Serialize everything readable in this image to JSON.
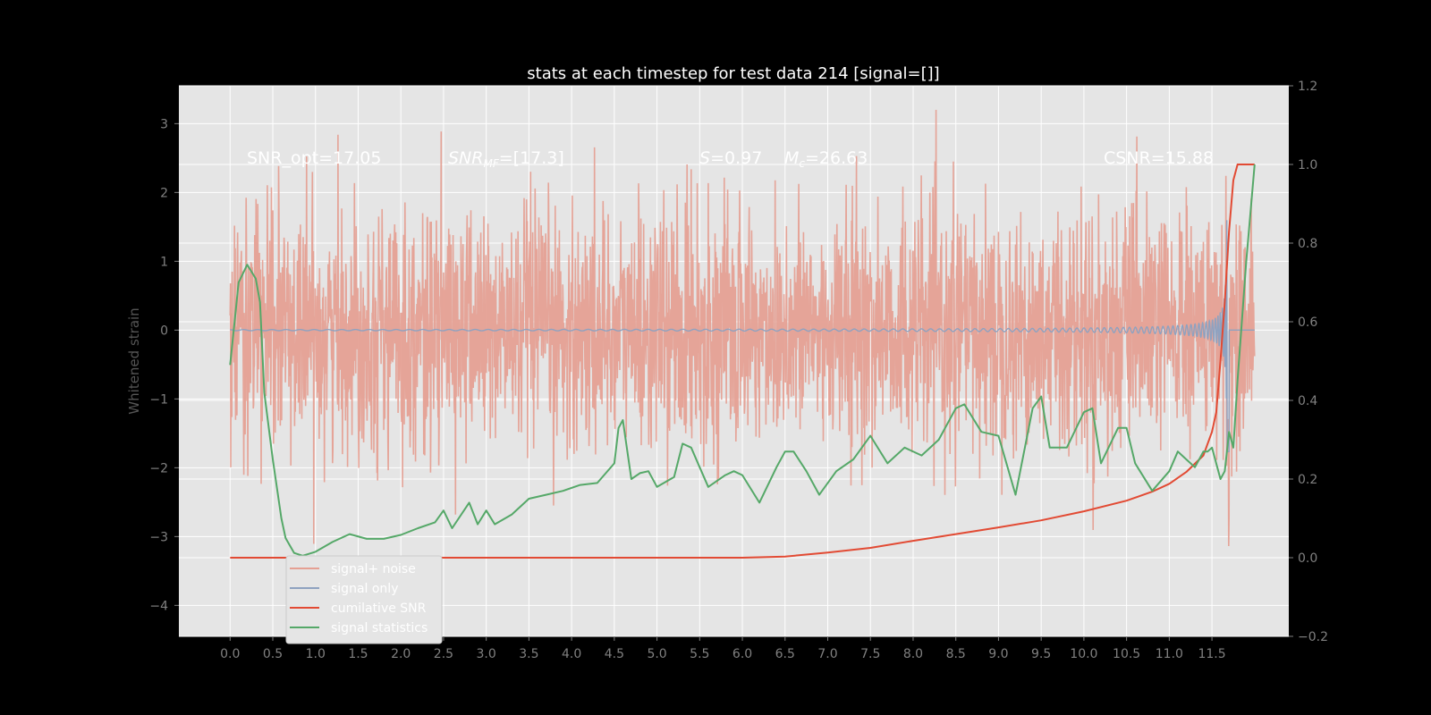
{
  "chart_data": {
    "type": "line",
    "title": "stats at each timestep for test data 214 [signal=[]]",
    "ylabel": "Whitened strain",
    "xlim": [
      -0.6,
      12.4
    ],
    "ylim": [
      -4.45,
      3.55
    ],
    "ylim_right": [
      -0.2,
      1.2
    ],
    "x_ticks": [
      0.0,
      0.5,
      1.0,
      1.5,
      2.0,
      2.5,
      3.0,
      3.5,
      4.0,
      4.5,
      5.0,
      5.5,
      6.0,
      6.5,
      7.0,
      7.5,
      8.0,
      8.5,
      9.0,
      9.5,
      10.0,
      10.5,
      11.0,
      11.5
    ],
    "x_tick_labels": [
      "0.0",
      "0.5",
      "1.0",
      "1.5",
      "2.0",
      "2.5",
      "3.0",
      "3.5",
      "4.0",
      "4.5",
      "5.0",
      "5.5",
      "6.0",
      "6.5",
      "7.0",
      "7.5",
      "8.0",
      "8.5",
      "9.0",
      "9.5",
      "10.0",
      "10.5",
      "11.0",
      "11.5"
    ],
    "y_ticks": [
      3,
      2,
      1,
      0,
      -1,
      -2,
      -3,
      -4
    ],
    "y_tick_labels": [
      "3",
      "2",
      "1",
      "0",
      "−1",
      "−2",
      "−3",
      "−4"
    ],
    "y_right_ticks": [
      1.2,
      1.0,
      0.8,
      0.6,
      0.4,
      0.2,
      0.0,
      -0.2
    ],
    "y_right_tick_labels": [
      "1.2",
      "1.0",
      "0.8",
      "0.6",
      "0.4",
      "0.2",
      "0.0",
      "−0.2"
    ],
    "grid": true,
    "legend_position": "lower-left",
    "annotations": {
      "snr_opt": "SNR_opt=17.05",
      "snr_mf_base": "SNR",
      "snr_mf_sub": "MF",
      "snr_mf_value": "=[17.3]",
      "s": "S",
      "s_value": "=0.97",
      "mc_base": "M",
      "mc_sub": "c",
      "mc_value": "=26.63",
      "csnr": "CSNR=15.88"
    },
    "series": [
      {
        "name": "signal+ noise",
        "color": "#e5a093",
        "axis": "left",
        "kind": "noise",
        "x_range": [
          0.0,
          12.0
        ],
        "amplitude_range": [
          -4.1,
          3.2
        ]
      },
      {
        "name": "signal only",
        "color": "#8fa2c0",
        "axis": "left",
        "kind": "chirp",
        "x_range": [
          0.0,
          12.0
        ],
        "merger_time": 11.68,
        "peak_amplitude": 2.8
      },
      {
        "name": "cumilative SNR",
        "color": "#e24a33",
        "axis": "right",
        "x": [
          0.0,
          6.0,
          6.5,
          7.0,
          7.5,
          8.0,
          8.5,
          9.0,
          9.5,
          10.0,
          10.5,
          10.8,
          11.0,
          11.2,
          11.4,
          11.5,
          11.55,
          11.6,
          11.65,
          11.7,
          11.75,
          11.8,
          12.0
        ],
        "y": [
          0.0,
          0.0,
          0.003,
          0.013,
          0.025,
          0.043,
          0.06,
          0.077,
          0.095,
          0.118,
          0.145,
          0.168,
          0.188,
          0.218,
          0.26,
          0.32,
          0.37,
          0.5,
          0.65,
          0.83,
          0.96,
          1.0,
          1.0
        ]
      },
      {
        "name": "signal statistics",
        "color": "#55a868",
        "axis": "right",
        "x": [
          0.0,
          0.1,
          0.2,
          0.3,
          0.35,
          0.4,
          0.5,
          0.6,
          0.65,
          0.75,
          0.85,
          1.0,
          1.2,
          1.4,
          1.6,
          1.8,
          2.0,
          2.2,
          2.4,
          2.5,
          2.6,
          2.8,
          2.9,
          3.0,
          3.1,
          3.3,
          3.5,
          3.7,
          3.9,
          4.1,
          4.3,
          4.5,
          4.55,
          4.6,
          4.7,
          4.8,
          4.9,
          5.0,
          5.2,
          5.3,
          5.4,
          5.5,
          5.6,
          5.8,
          5.9,
          6.0,
          6.2,
          6.4,
          6.5,
          6.6,
          6.75,
          6.9,
          7.1,
          7.3,
          7.5,
          7.7,
          7.9,
          8.1,
          8.3,
          8.5,
          8.6,
          8.8,
          9.0,
          9.2,
          9.4,
          9.5,
          9.6,
          9.8,
          10.0,
          10.1,
          10.2,
          10.4,
          10.5,
          10.6,
          10.8,
          11.0,
          11.1,
          11.2,
          11.3,
          11.35,
          11.4,
          11.45,
          11.5,
          11.6,
          11.65,
          11.7,
          11.75,
          11.8,
          11.9,
          12.0
        ],
        "y": [
          0.49,
          0.7,
          0.745,
          0.71,
          0.65,
          0.42,
          0.25,
          0.1,
          0.05,
          0.012,
          0.005,
          0.015,
          0.04,
          0.06,
          0.048,
          0.048,
          0.058,
          0.075,
          0.09,
          0.12,
          0.075,
          0.14,
          0.085,
          0.12,
          0.085,
          0.11,
          0.15,
          0.16,
          0.17,
          0.185,
          0.19,
          0.24,
          0.33,
          0.35,
          0.2,
          0.215,
          0.22,
          0.18,
          0.205,
          0.29,
          0.28,
          0.23,
          0.18,
          0.21,
          0.22,
          0.21,
          0.14,
          0.23,
          0.27,
          0.27,
          0.22,
          0.16,
          0.22,
          0.25,
          0.31,
          0.24,
          0.28,
          0.26,
          0.3,
          0.38,
          0.39,
          0.32,
          0.31,
          0.16,
          0.38,
          0.41,
          0.28,
          0.28,
          0.37,
          0.38,
          0.24,
          0.33,
          0.33,
          0.24,
          0.17,
          0.22,
          0.27,
          0.25,
          0.23,
          0.25,
          0.27,
          0.27,
          0.28,
          0.2,
          0.22,
          0.32,
          0.28,
          0.45,
          0.75,
          1.0
        ]
      }
    ]
  }
}
